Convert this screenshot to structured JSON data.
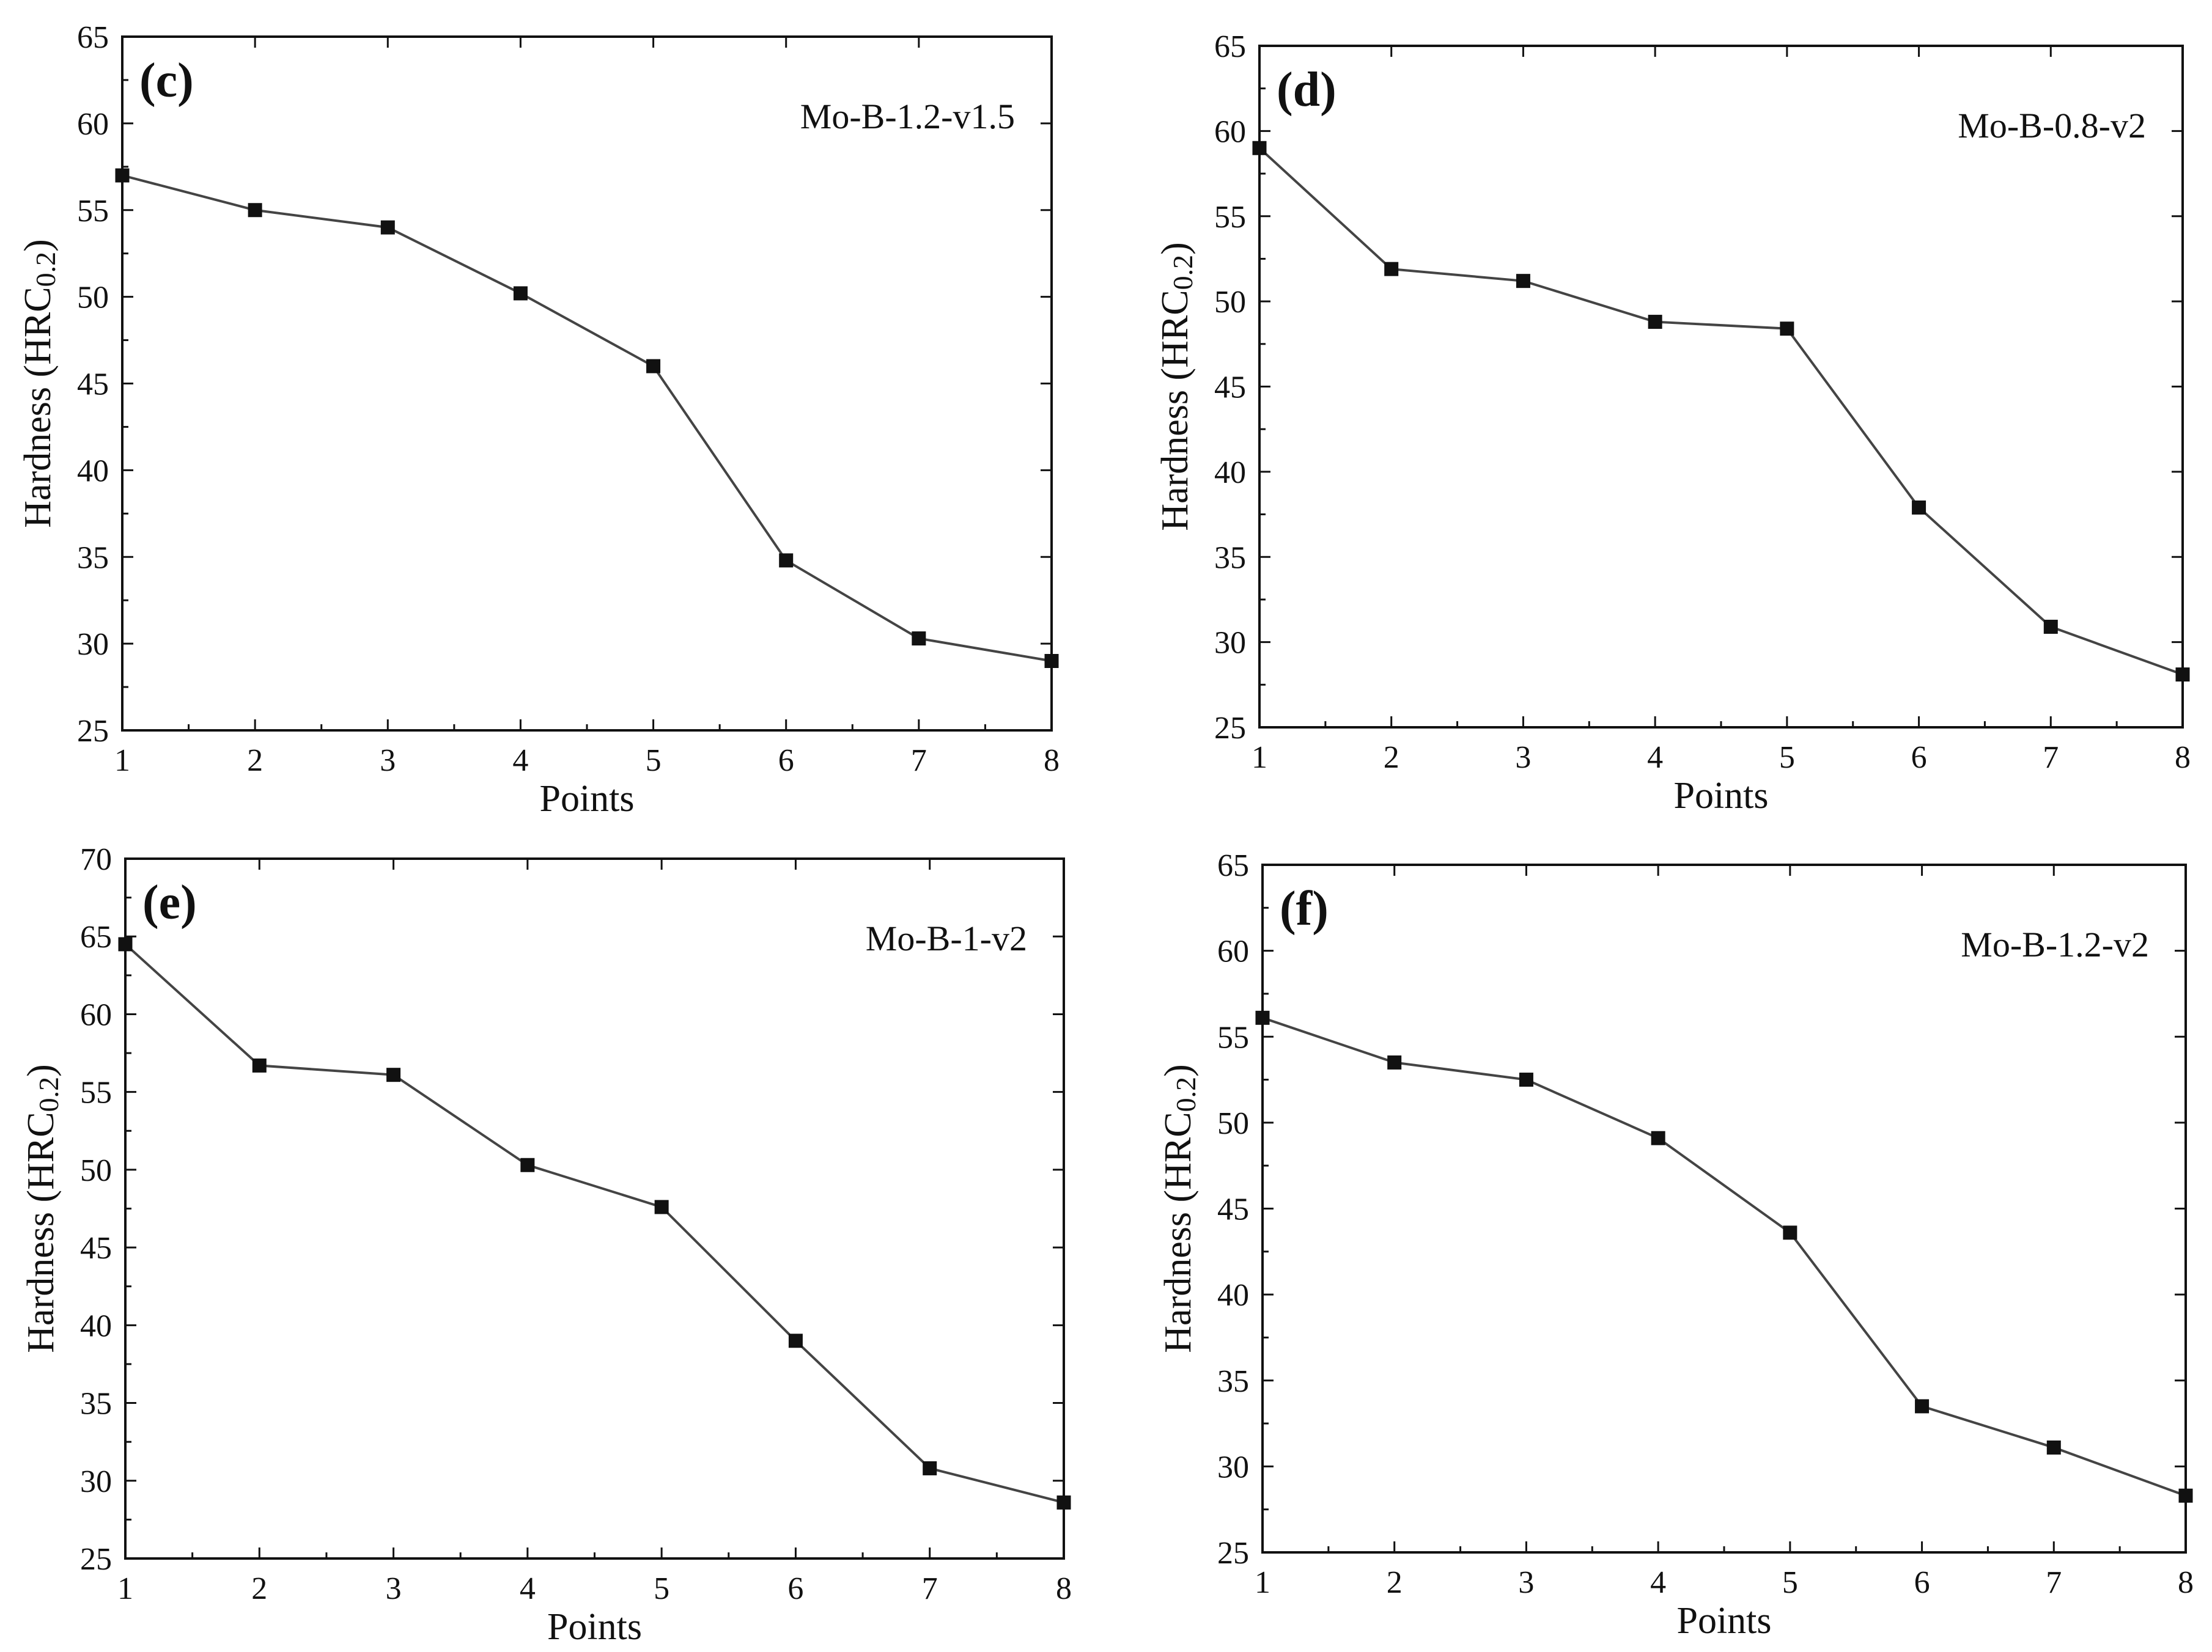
{
  "figure": {
    "colors": {
      "line": "#444444",
      "marker": "#111111",
      "frame": "#111111",
      "background": "#ffffff"
    }
  },
  "chart_data": [
    {
      "type": "line",
      "panel": "(c)",
      "series_label": "Mo-B-1.2-v1.5",
      "xlabel": "Points",
      "ylabel": "Hardness (HRC",
      "ylabel_sub": "0.2",
      "ylabel_close": ")",
      "x": [
        1,
        2,
        3,
        4,
        5,
        6,
        7,
        8
      ],
      "values": [
        57.0,
        55.0,
        54.0,
        50.2,
        46.0,
        34.8,
        30.3,
        29.0
      ],
      "ylim": [
        25,
        65
      ],
      "yticks": [
        25,
        30,
        35,
        40,
        45,
        50,
        55,
        60,
        65
      ],
      "xticks": [
        1,
        2,
        3,
        4,
        5,
        6,
        7,
        8
      ]
    },
    {
      "type": "line",
      "panel": "(d)",
      "series_label": "Mo-B-0.8-v2",
      "xlabel": "Points",
      "ylabel": "Hardness (HRC",
      "ylabel_sub": "0.2",
      "ylabel_close": ")",
      "x": [
        1,
        2,
        3,
        4,
        5,
        6,
        7,
        8
      ],
      "values": [
        59.0,
        51.9,
        51.2,
        48.8,
        48.4,
        37.9,
        30.9,
        28.1
      ],
      "ylim": [
        25,
        65
      ],
      "yticks": [
        25,
        30,
        35,
        40,
        45,
        50,
        55,
        60,
        65
      ],
      "xticks": [
        1,
        2,
        3,
        4,
        5,
        6,
        7,
        8
      ]
    },
    {
      "type": "line",
      "panel": "(e)",
      "series_label": "Mo-B-1-v2",
      "xlabel": "Points",
      "ylabel": "Hardness (HRC",
      "ylabel_sub": "0.2",
      "ylabel_close": ")",
      "x": [
        1,
        2,
        3,
        4,
        5,
        6,
        7,
        8
      ],
      "values": [
        64.5,
        56.7,
        56.1,
        50.3,
        47.6,
        39.0,
        30.8,
        28.6
      ],
      "ylim": [
        25,
        70
      ],
      "yticks": [
        25,
        30,
        35,
        40,
        45,
        50,
        55,
        60,
        65,
        70
      ],
      "xticks": [
        1,
        2,
        3,
        4,
        5,
        6,
        7,
        8
      ]
    },
    {
      "type": "line",
      "panel": "(f)",
      "series_label": "Mo-B-1.2-v2",
      "xlabel": "Points",
      "ylabel": "Hardness (HRC",
      "ylabel_sub": "0.2",
      "ylabel_close": ")",
      "x": [
        1,
        2,
        3,
        4,
        5,
        6,
        7,
        8
      ],
      "values": [
        56.1,
        53.5,
        52.5,
        49.1,
        43.6,
        33.5,
        31.1,
        28.3
      ],
      "ylim": [
        25,
        65
      ],
      "yticks": [
        25,
        30,
        35,
        40,
        45,
        50,
        55,
        60,
        65
      ],
      "xticks": [
        1,
        2,
        3,
        4,
        5,
        6,
        7,
        8
      ]
    }
  ]
}
